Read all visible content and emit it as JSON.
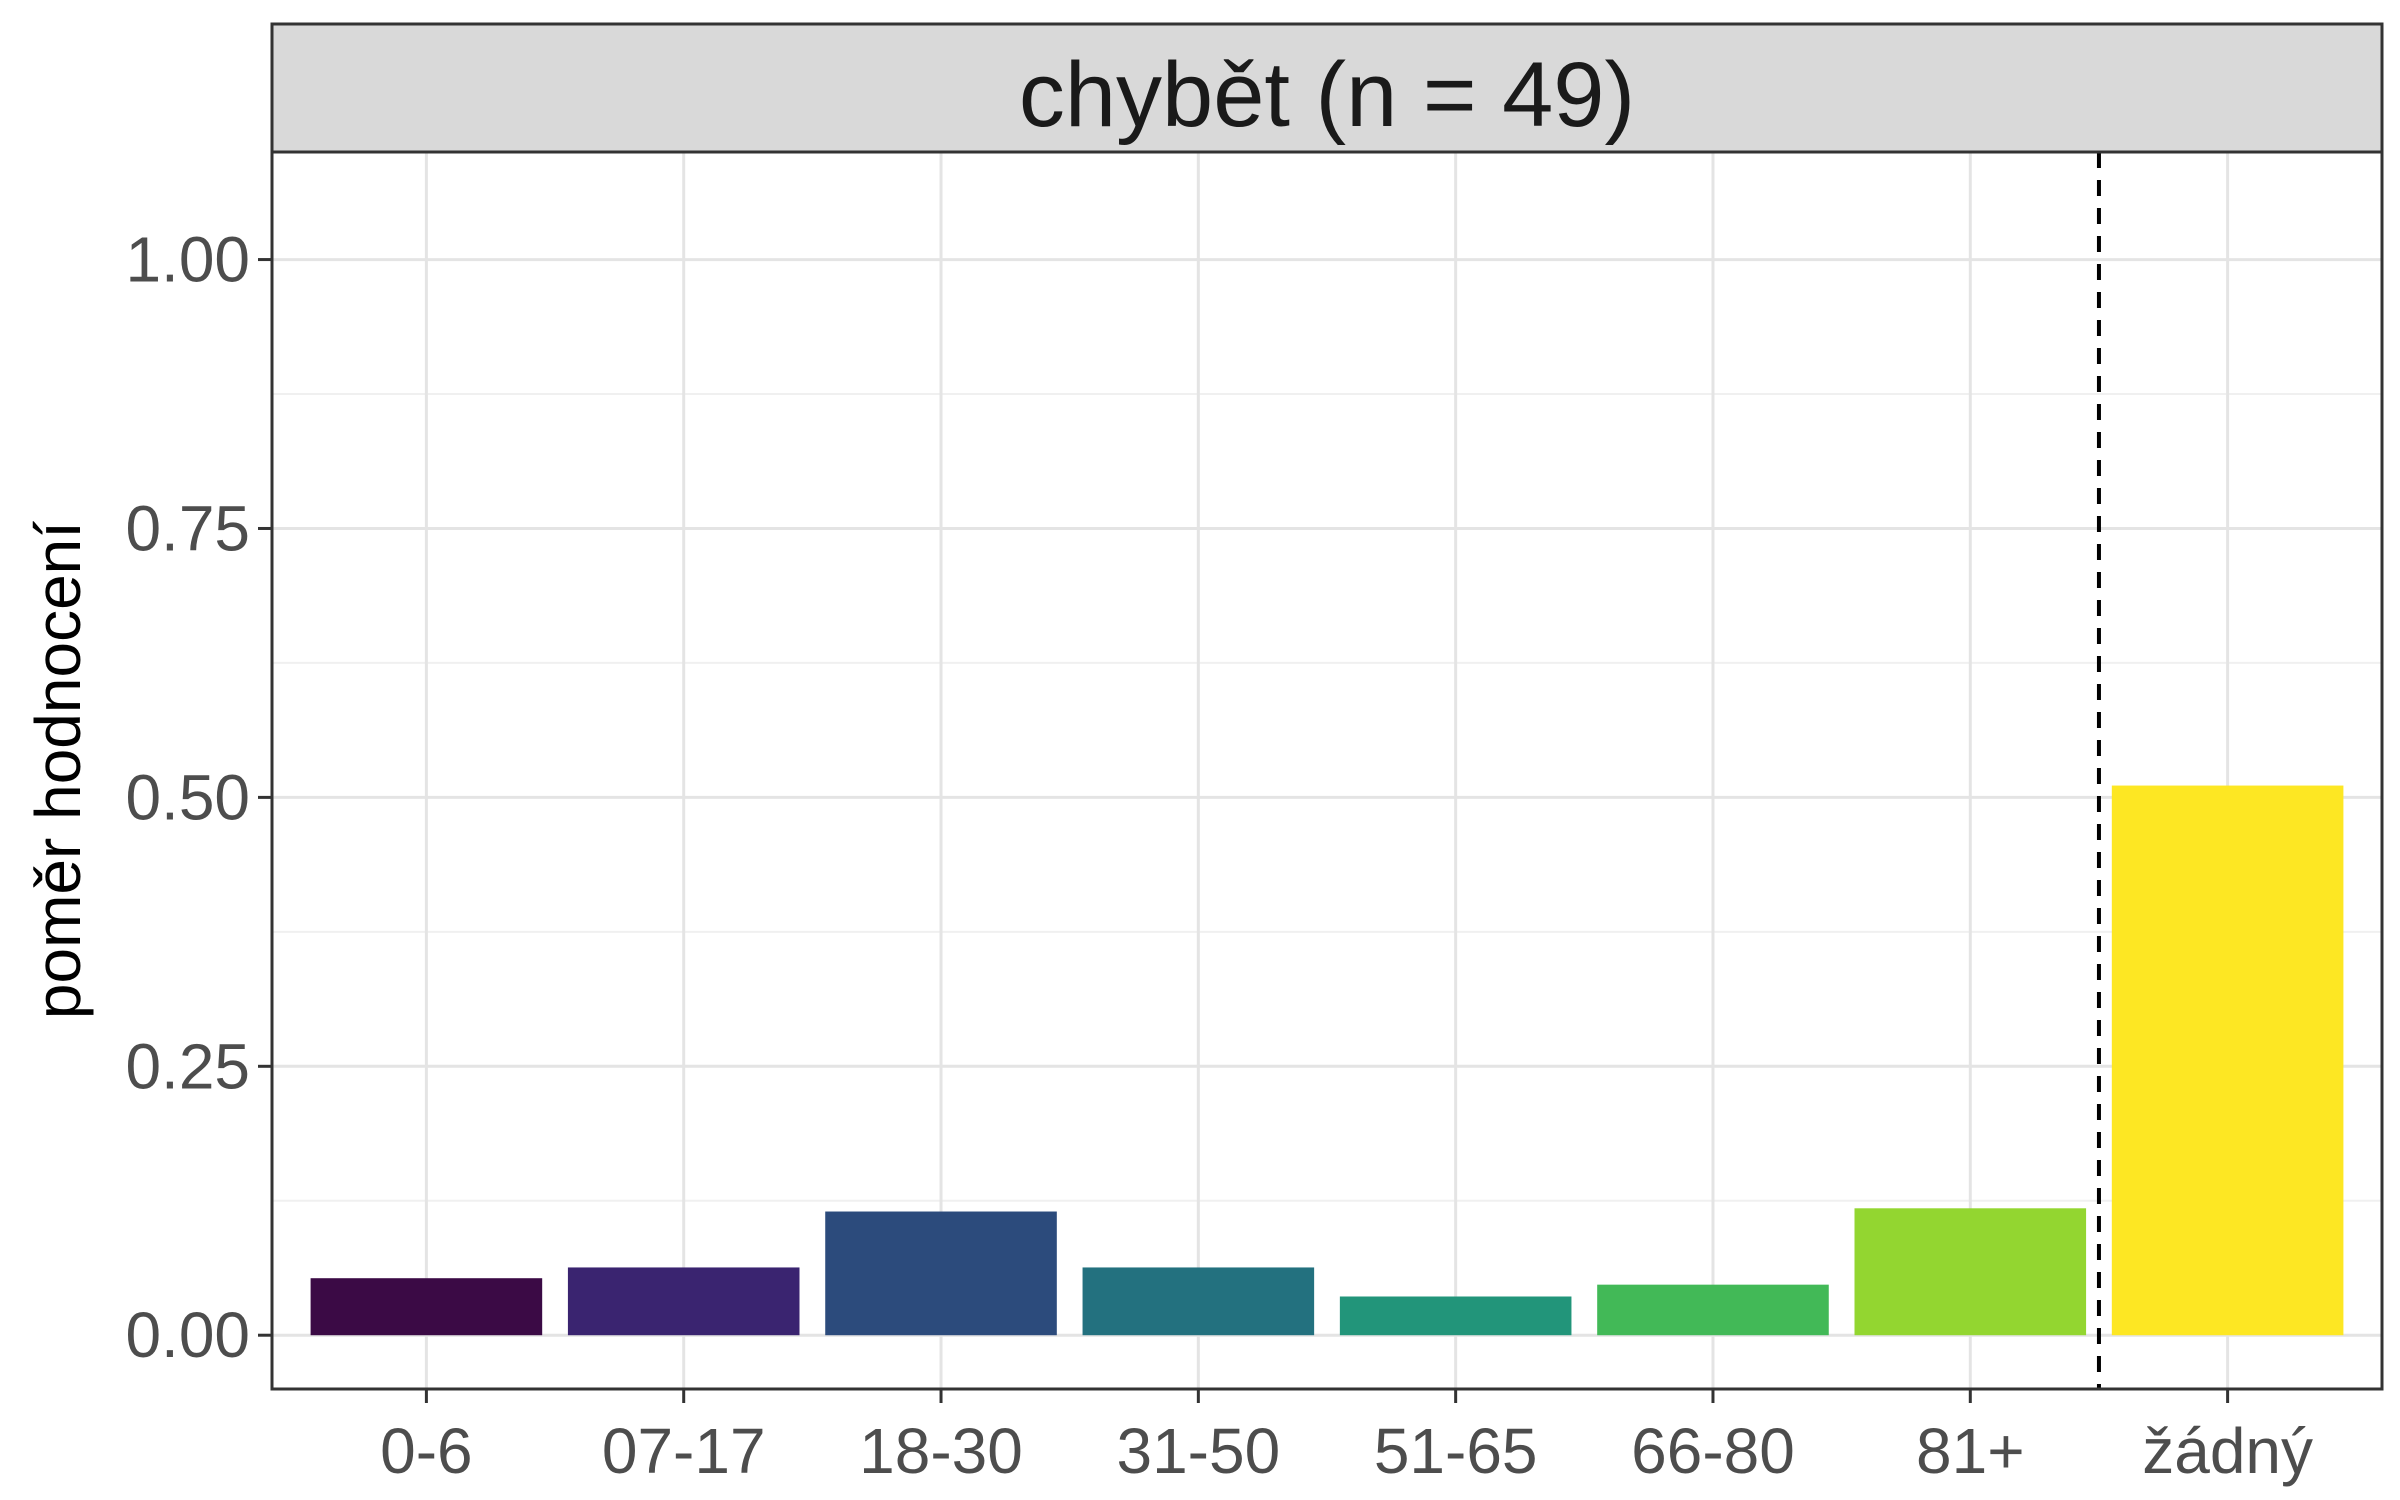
{
  "chart_data": {
    "type": "bar",
    "panel_title": "chybět (n = 49)",
    "categories": [
      "0-6",
      "07-17",
      "18-30",
      "31-50",
      "51-65",
      "66-80",
      "81+",
      "žádný"
    ],
    "values": [
      0.053,
      0.063,
      0.115,
      0.063,
      0.036,
      0.047,
      0.118,
      0.511
    ],
    "colors": [
      "#3b0a45",
      "#3a2470",
      "#2c4b7c",
      "#23717f",
      "#22957a",
      "#42b957",
      "#93d630",
      "#fde723"
    ],
    "xlabel": "",
    "ylabel": "poměr hodnocení",
    "ylim": [
      -0.05,
      1.1
    ],
    "yticks": [
      0.0,
      0.25,
      0.5,
      0.75,
      1.0
    ],
    "ytick_labels": [
      "0.00",
      "0.25",
      "0.50",
      "0.75",
      "1.00"
    ],
    "separator_after_category": "81+",
    "separator_style": "dashed",
    "grid": true,
    "legend": "none"
  }
}
